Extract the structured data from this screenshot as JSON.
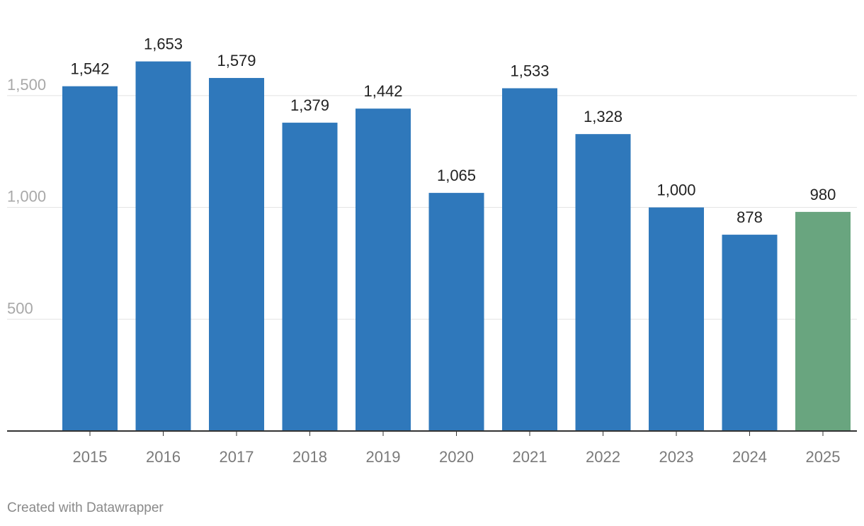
{
  "chart_data": {
    "type": "bar",
    "categories": [
      "2015",
      "2016",
      "2017",
      "2018",
      "2019",
      "2020",
      "2021",
      "2022",
      "2023",
      "2024",
      "2025"
    ],
    "values": [
      1542,
      1653,
      1579,
      1379,
      1442,
      1065,
      1533,
      1328,
      1000,
      878,
      980
    ],
    "value_labels": [
      "1,542",
      "1,653",
      "1,579",
      "1,379",
      "1,442",
      "1,065",
      "1,533",
      "1,328",
      "1,000",
      "878",
      "980"
    ],
    "y_ticks": [
      500,
      1000,
      1500
    ],
    "y_tick_labels": [
      "500",
      "1,000",
      "1,500"
    ],
    "ylim": [
      0,
      1700
    ],
    "grid": true,
    "colors": {
      "default_bar": "#2f78bb",
      "highlight_bar": "#69a57f"
    },
    "highlighted_category": "2025"
  },
  "footer": {
    "credit": "Created with Datawrapper"
  }
}
